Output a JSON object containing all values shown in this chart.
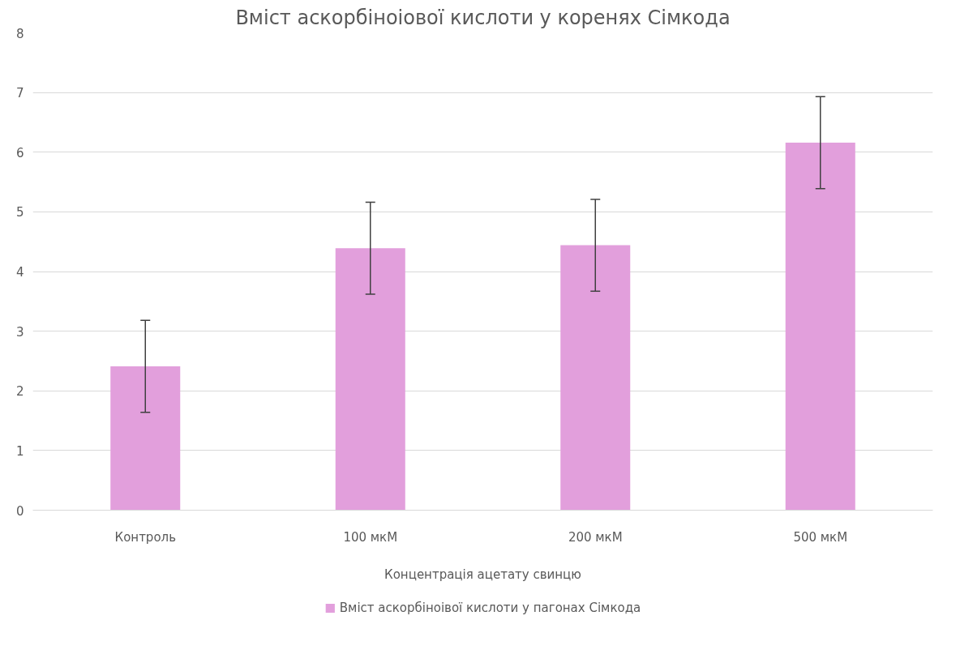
{
  "chart_data": {
    "type": "bar",
    "title": "Вміст аскорбіноіової кислоти у коренях Сімкода",
    "xlabel": "Концентрація ацетату свинцю",
    "categories": [
      "Контроль",
      "100 мкМ",
      "200 мкМ",
      "500 мкМ"
    ],
    "series": [
      {
        "name": "Вміст аскорбіноівої кислоти у пагонах Сімкода",
        "color": "#e29fdc",
        "values": [
          2.41,
          4.39,
          4.44,
          6.16
        ],
        "errors": [
          0.77,
          0.77,
          0.77,
          0.77
        ]
      }
    ],
    "ylim": [
      0,
      8
    ],
    "yticks": [
      0,
      1,
      2,
      3,
      4,
      5,
      6,
      7,
      8
    ],
    "grid": "y",
    "legend": "bottom"
  }
}
